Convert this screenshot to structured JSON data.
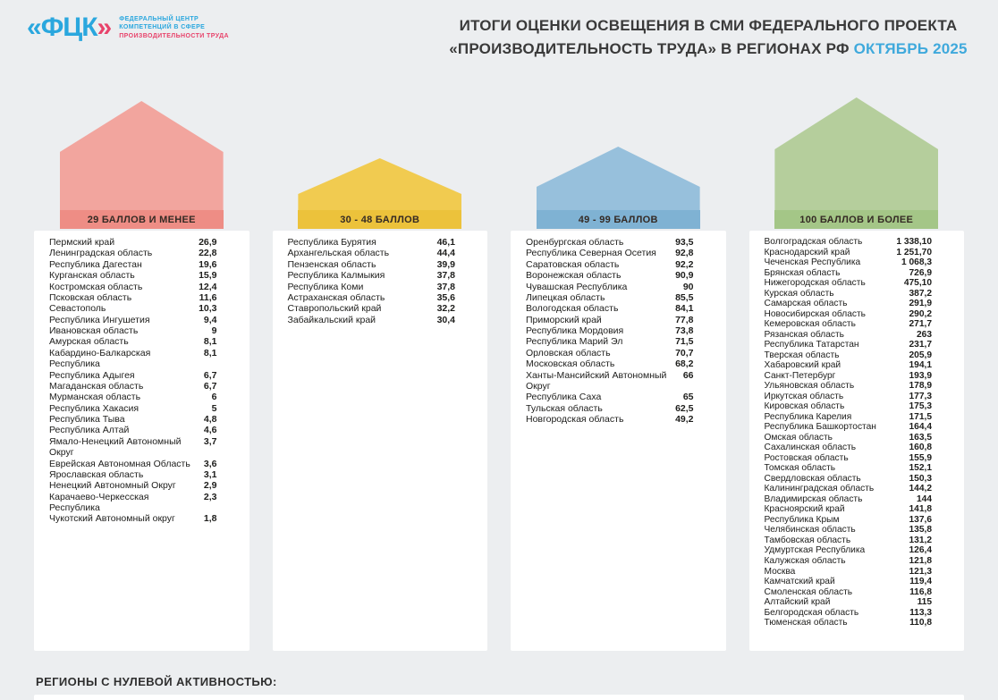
{
  "logo": {
    "mark_open": "«",
    "mark_letters": "ФЦК",
    "mark_close": "»",
    "line1": "ФЕДЕРАЛЬНЫЙ ЦЕНТР",
    "line2": "КОМПЕТЕНЦИЙ В СФЕРЕ",
    "line3": "ПРОИЗВОДИТЕЛЬНОСТИ ТРУДА",
    "blue": "#2AA7DE",
    "pink": "#E8436B"
  },
  "header": {
    "title_line1": "ИТОГИ ОЦЕНКИ ОСВЕЩЕНИЯ В СМИ ФЕДЕРАЛЬНОГО ПРОЕКТА",
    "title_line2": "«ПРОИЗВОДИТЕЛЬНОСТЬ ТРУДА» В РЕГИОНАХ РФ",
    "title_period": "ОКТЯБРЬ 2025",
    "accent_color": "#3FA9DC"
  },
  "footer": {
    "zero_activity_label": "РЕГИОНЫ С НУЛЕВОЙ АКТИВНОСТЬЮ:"
  },
  "chart_data": {
    "type": "table",
    "title": "ИТОГИ ОЦЕНКИ ОСВЕЩЕНИЯ В СМИ ФЕДЕРАЛЬНОГО ПРОЕКТА «ПРОИЗВОДИТЕЛЬНОСТЬ ТРУДА» В РЕГИОНАХ РФ ОКТЯБРЬ 2025",
    "groups": [
      {
        "label": "29 БАЛЛОВ И МЕНЕЕ",
        "color": "#F2A59E",
        "band_color": "#EE8D85",
        "regions": [
          [
            "Пермский край",
            "26,9"
          ],
          [
            "Ленинградская область",
            "22,8"
          ],
          [
            "Республика Дагестан",
            "19,6"
          ],
          [
            "Курганская область",
            "15,9"
          ],
          [
            "Костромская область",
            "12,4"
          ],
          [
            "Псковская область",
            "11,6"
          ],
          [
            "Севастополь",
            "10,3"
          ],
          [
            "Республика Ингушетия",
            "9,4"
          ],
          [
            "Ивановская область",
            "9"
          ],
          [
            "Амурская область",
            "8,1"
          ],
          [
            "Кабардино-Балкарская Республика",
            "8,1"
          ],
          [
            "Республика Адыгея",
            "6,7"
          ],
          [
            "Магаданская область",
            "6,7"
          ],
          [
            "Мурманская область",
            "6"
          ],
          [
            "Республика Хакасия",
            "5"
          ],
          [
            "Республика Тыва",
            "4,8"
          ],
          [
            "Республика Алтай",
            "4,6"
          ],
          [
            "Ямало-Ненецкий Автономный Округ",
            "3,7"
          ],
          [
            "Еврейская Автономная Область",
            "3,6"
          ],
          [
            "Ярославская область",
            "3,1"
          ],
          [
            "Ненецкий Автономный Округ",
            "2,9"
          ],
          [
            "Карачаево-Черкесская Республика",
            "2,3"
          ],
          [
            "Чукотский Автономный округ",
            "1,8"
          ]
        ]
      },
      {
        "label": "30 - 48 БАЛЛОВ",
        "color": "#F1CB50",
        "band_color": "#ECC23B",
        "regions": [
          [
            "Республика Бурятия",
            "46,1"
          ],
          [
            "Архангельская область",
            "44,4"
          ],
          [
            "Пензенская область",
            "39,9"
          ],
          [
            "Республика Калмыкия",
            "37,8"
          ],
          [
            "Республика Коми",
            "37,8"
          ],
          [
            "Астраханская область",
            "35,6"
          ],
          [
            "Ставропольский край",
            "32,2"
          ],
          [
            "Забайкальский край",
            "30,4"
          ]
        ]
      },
      {
        "label": "49 - 99 БАЛЛОВ",
        "color": "#97C0DC",
        "band_color": "#7FB2D3",
        "regions": [
          [
            "Оренбургская область",
            "93,5"
          ],
          [
            "Республика Северная Осетия",
            "92,8"
          ],
          [
            "Саратовская область",
            "92,2"
          ],
          [
            "Воронежская область",
            "90,9"
          ],
          [
            "Чувашская Республика",
            "90"
          ],
          [
            "Липецкая область",
            "85,5"
          ],
          [
            "Вологодская область",
            "84,1"
          ],
          [
            "Приморский край",
            "77,8"
          ],
          [
            "Республика Мордовия",
            "73,8"
          ],
          [
            "Республика Марий Эл",
            "71,5"
          ],
          [
            "Орловская область",
            "70,7"
          ],
          [
            "Московская область",
            "68,2"
          ],
          [
            "Ханты-Мансийский Автономный Округ",
            "66"
          ],
          [
            "Республика Саха",
            "65"
          ],
          [
            "Тульская область",
            "62,5"
          ],
          [
            "Новгородская область",
            "49,2"
          ]
        ]
      },
      {
        "label": "100 БАЛЛОВ И БОЛЕЕ",
        "color": "#B5CE9C",
        "band_color": "#A4C687",
        "regions": [
          [
            "Волгоградская область",
            "1 338,10"
          ],
          [
            "Краснодарский край",
            "1 251,70"
          ],
          [
            "Чеченская Республика",
            "1 068,3"
          ],
          [
            "Брянская область",
            "726,9"
          ],
          [
            "Нижегородская область",
            "475,10"
          ],
          [
            "Курская область",
            "387,2"
          ],
          [
            "Самарская область",
            "291,9"
          ],
          [
            "Новосибирская область",
            "290,2"
          ],
          [
            "Кемеровская область",
            "271,7"
          ],
          [
            "Рязанская область",
            "263"
          ],
          [
            "Республика Татарстан",
            "231,7"
          ],
          [
            "Тверская область",
            "205,9"
          ],
          [
            "Хабаровский край",
            "194,1"
          ],
          [
            "Санкт-Петербург",
            "193,9"
          ],
          [
            "Ульяновская область",
            "178,9"
          ],
          [
            "Иркутская область",
            "177,3"
          ],
          [
            "Кировская область",
            "175,3"
          ],
          [
            "Республика Карелия",
            "171,5"
          ],
          [
            "Республика Башкортостан",
            "164,4"
          ],
          [
            "Омская область",
            "163,5"
          ],
          [
            "Сахалинская область",
            "160,8"
          ],
          [
            "Ростовская область",
            "155,9"
          ],
          [
            "Томская область",
            "152,1"
          ],
          [
            "Свердловская область",
            "150,3"
          ],
          [
            "Калининградская область",
            "144,2"
          ],
          [
            "Владимирская область",
            "144"
          ],
          [
            "Красноярский край",
            "141,8"
          ],
          [
            "Республика Крым",
            "137,6"
          ],
          [
            "Челябинская область",
            "135,8"
          ],
          [
            "Тамбовская область",
            "131,2"
          ],
          [
            "Удмуртская Республика",
            "126,4"
          ],
          [
            "Калужская область",
            "121,8"
          ],
          [
            "Москва",
            "121,3"
          ],
          [
            "Камчатский край",
            "119,4"
          ],
          [
            "Смоленская область",
            "116,8"
          ],
          [
            "Алтайский край",
            "115"
          ],
          [
            "Белгородская область",
            "113,3"
          ],
          [
            "Тюменская область",
            "110,8"
          ]
        ]
      }
    ]
  }
}
